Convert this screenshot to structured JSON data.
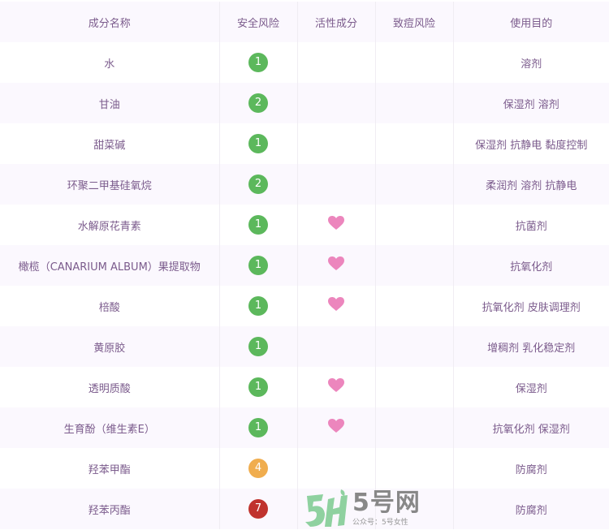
{
  "table": {
    "headers": [
      "成分名称",
      "安全风险",
      "活性成分",
      "致痘风险",
      "使用目的"
    ],
    "rows": [
      {
        "name": "水",
        "risk": 1,
        "active": false,
        "acne": "",
        "purpose": "溶剂"
      },
      {
        "name": "甘油",
        "risk": 2,
        "active": false,
        "acne": "",
        "purpose": "保湿剂 溶剂"
      },
      {
        "name": "甜菜碱",
        "risk": 1,
        "active": false,
        "acne": "",
        "purpose": "保湿剂 抗静电 黏度控制"
      },
      {
        "name": "环聚二甲基硅氧烷",
        "risk": 2,
        "active": false,
        "acne": "",
        "purpose": "柔润剂 溶剂 抗静电"
      },
      {
        "name": "水解原花青素",
        "risk": 1,
        "active": true,
        "acne": "",
        "purpose": "抗菌剂"
      },
      {
        "name": "橄榄（CANARIUM ALBUM）果提取物",
        "risk": 1,
        "active": true,
        "acne": "",
        "purpose": "抗氧化剂"
      },
      {
        "name": "棓酸",
        "risk": 1,
        "active": true,
        "acne": "",
        "purpose": "抗氧化剂 皮肤调理剂"
      },
      {
        "name": "黄原胶",
        "risk": 1,
        "active": false,
        "acne": "",
        "purpose": "增稠剂 乳化稳定剂"
      },
      {
        "name": "透明质酸",
        "risk": 1,
        "active": true,
        "acne": "",
        "purpose": "保湿剂"
      },
      {
        "name": "生育酚（维生素E）",
        "risk": 1,
        "active": true,
        "acne": "",
        "purpose": "抗氧化剂 保湿剂"
      },
      {
        "name": "羟苯甲酯",
        "risk": 4,
        "active": false,
        "acne": "",
        "purpose": "防腐剂"
      },
      {
        "name": "羟苯丙酯",
        "risk": 7,
        "active": false,
        "acne": "",
        "purpose": "防腐剂"
      }
    ]
  },
  "colors": {
    "text": "#7b5b8c",
    "risk_low": "#5cb85c",
    "risk_mid": "#f0ad4e",
    "risk_high": "#c0332e",
    "heart": "#ec86bd"
  },
  "icons": {
    "active": "heart-icon"
  },
  "watermark": {
    "brand": "5号网",
    "sub": "公众号：5号女性"
  }
}
